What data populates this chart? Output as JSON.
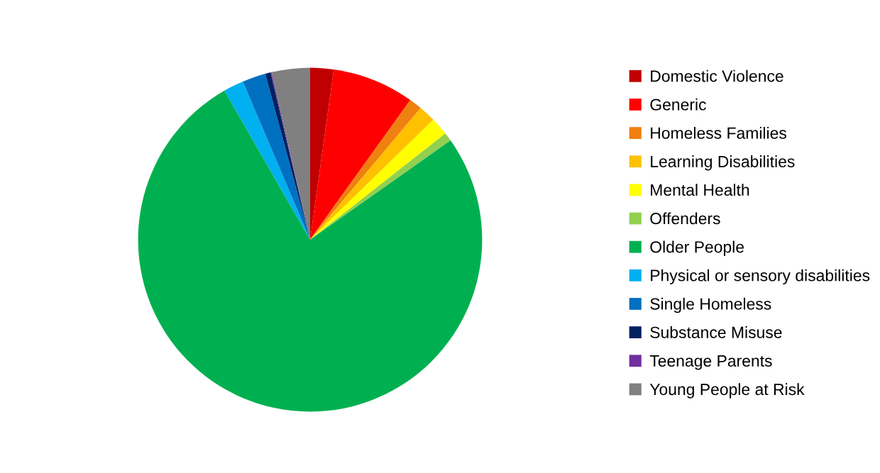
{
  "chart_data": {
    "type": "pie",
    "categories": [
      "Domestic Violence",
      "Generic",
      "Homeless Families",
      "Learning Disabilities",
      "Mental Health",
      "Offenders",
      "Older People",
      "Physical or sensory disabilities",
      "Single Homeless",
      "Substance Misuse",
      "Teenage Parents",
      "Young People at Risk"
    ],
    "values": [
      2.2,
      7.7,
      1.2,
      1.6,
      1.7,
      0.8,
      76.5,
      1.9,
      2.2,
      0.5,
      0.1,
      3.6
    ],
    "colors": [
      "#c00000",
      "#ff0000",
      "#f08010",
      "#ffc000",
      "#ffff00",
      "#92d050",
      "#00b050",
      "#00b0f0",
      "#0070c0",
      "#002060",
      "#7030a0",
      "#808080"
    ],
    "legend": "right"
  }
}
